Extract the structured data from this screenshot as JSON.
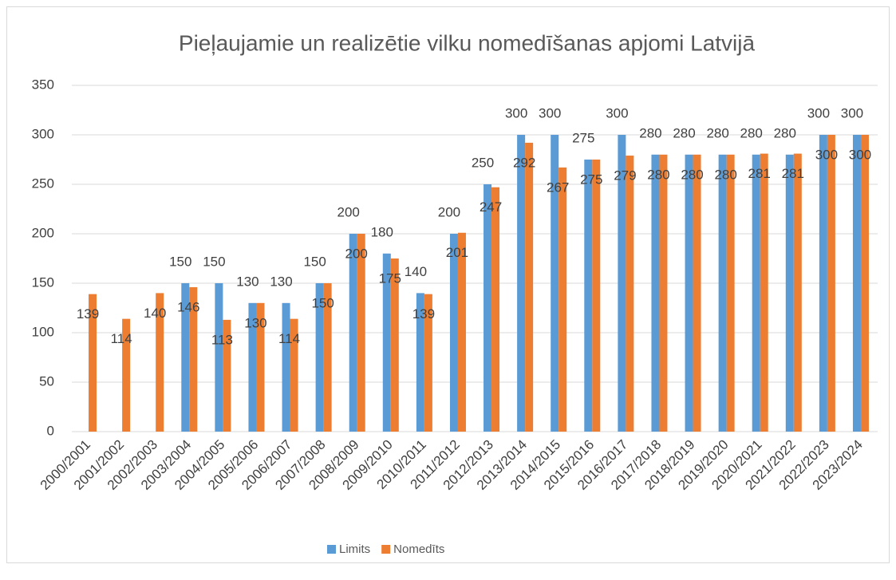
{
  "chart_data": {
    "type": "bar",
    "title": "Pieļaujamie un realizētie vilku nomedīšanas apjomi Latvijā",
    "categories": [
      "2000/2001",
      "2001/2002",
      "2002/2003",
      "2003/2004",
      "2004/2005",
      "2005/2006",
      "2006/2007",
      "2007/2008",
      "2008/2009",
      "2009/2010",
      "2010/2011",
      "2011/2012",
      "2012/2013",
      "2013/2014",
      "2014/2015",
      "2015/2016",
      "2016/2017",
      "2017/2018",
      "2018/2019",
      "2019/2020",
      "2020/2021",
      "2021/2022",
      "2022/2023",
      "2023/2024"
    ],
    "series": [
      {
        "name": "Limits",
        "color": "#5b9bd5",
        "values": [
          null,
          null,
          null,
          150,
          150,
          130,
          130,
          150,
          200,
          180,
          140,
          200,
          250,
          300,
          300,
          275,
          300,
          280,
          280,
          280,
          280,
          280,
          300,
          300
        ]
      },
      {
        "name": "Nomedīts",
        "color": "#ed7d31",
        "values": [
          139,
          114,
          140,
          146,
          113,
          130,
          114,
          150,
          200,
          175,
          139,
          201,
          247,
          292,
          267,
          275,
          279,
          280,
          280,
          280,
          281,
          281,
          300,
          300
        ]
      }
    ],
    "ylim": [
      0,
      350
    ],
    "yticks": [
      0,
      50,
      100,
      150,
      200,
      250,
      300,
      350
    ],
    "grid": true,
    "legend": "bottom"
  }
}
